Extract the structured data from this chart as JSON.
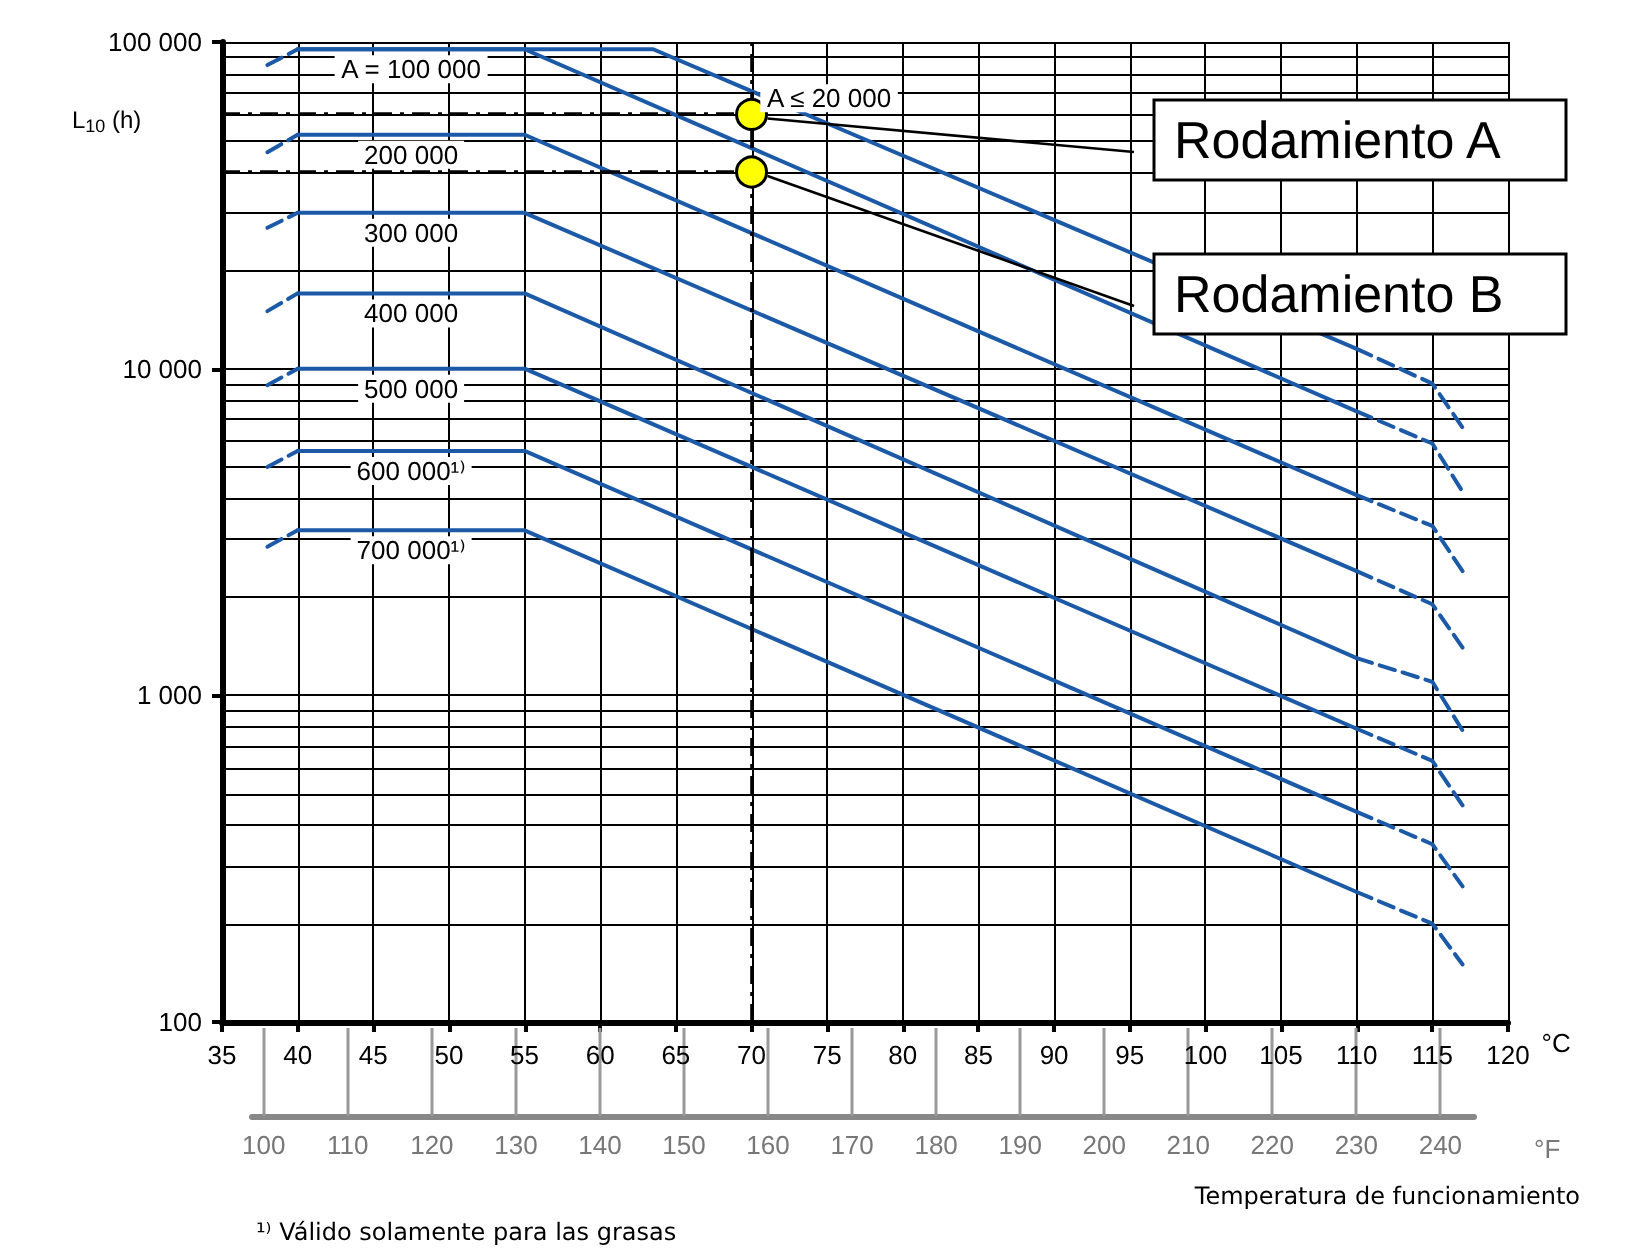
{
  "chart_data": {
    "type": "line",
    "xlabel": "°C",
    "x2label": "°F",
    "ylabel": "L$_{10}$ (h)",
    "xlim": [
      35,
      120
    ],
    "xticks": [
      35,
      40,
      45,
      50,
      55,
      60,
      65,
      70,
      75,
      80,
      85,
      90,
      95,
      100,
      105,
      110,
      115,
      120
    ],
    "x2lim": [
      98.6,
      244
    ],
    "x2ticks": [
      100,
      110,
      120,
      130,
      140,
      150,
      160,
      170,
      180,
      190,
      200,
      210,
      220,
      230,
      240
    ],
    "ylim": [
      100,
      100000
    ],
    "yticks": [
      {
        "value": 100,
        "label": "100"
      },
      {
        "value": 200,
        "label": null
      },
      {
        "value": 300,
        "label": null
      },
      {
        "value": 400,
        "label": null
      },
      {
        "value": 500,
        "label": null
      },
      {
        "value": 600,
        "label": null
      },
      {
        "value": 700,
        "label": null
      },
      {
        "value": 800,
        "label": null
      },
      {
        "value": 900,
        "label": null
      },
      {
        "value": 1000,
        "label": "1 000"
      },
      {
        "value": 2000,
        "label": null
      },
      {
        "value": 3000,
        "label": null
      },
      {
        "value": 4000,
        "label": null
      },
      {
        "value": 5000,
        "label": null
      },
      {
        "value": 6000,
        "label": null
      },
      {
        "value": 7000,
        "label": null
      },
      {
        "value": 8000,
        "label": null
      },
      {
        "value": 9000,
        "label": null
      },
      {
        "value": 10000,
        "label": "10 000"
      },
      {
        "value": 20000,
        "label": null
      },
      {
        "value": 30000,
        "label": null
      },
      {
        "value": 40000,
        "label": null
      },
      {
        "value": 50000,
        "label": null
      },
      {
        "value": 60000,
        "label": null
      },
      {
        "value": 70000,
        "label": null
      },
      {
        "value": 80000,
        "label": null
      },
      {
        "value": 90000,
        "label": null
      },
      {
        "value": 100000,
        "label": "100 000"
      }
    ],
    "log": "y",
    "grid": true,
    "marker": "none",
    "series": [
      {
        "name": "A = 100 000",
        "color": "#1c5aa8",
        "line_style": "solid",
        "x": [
          40,
          55,
          110
        ],
        "values": [
          95000,
          95000,
          7400
        ]
      },
      {
        "name": "A ≤ 20 000",
        "color": "#1c5aa8",
        "line_style": "solid",
        "x": [
          40,
          63.5,
          110
        ],
        "values": [
          95000,
          95000,
          11500
        ]
      },
      {
        "color": "#1c5aa8",
        "line_style": "dashed",
        "x": [
          110,
          115,
          117
        ],
        "values": [
          11500,
          9000,
          6600
        ]
      },
      {
        "color": "#1c5aa8",
        "line_style": "dashed",
        "x": [
          38,
          40
        ],
        "values": [
          85000,
          95000
        ]
      },
      {
        "color": "#1c5aa8",
        "line_style": "dashed",
        "x": [
          110,
          115,
          117
        ],
        "values": [
          7400,
          5900,
          4200
        ]
      },
      {
        "name": "200 000",
        "color": "#1c5aa8",
        "line_style": "solid",
        "x": [
          40,
          55,
          110
        ],
        "values": [
          52000,
          52000,
          4100
        ]
      },
      {
        "color": "#1c5aa8",
        "line_style": "dashed",
        "x": [
          38,
          40
        ],
        "values": [
          46000,
          52000
        ]
      },
      {
        "color": "#1c5aa8",
        "line_style": "dashed",
        "x": [
          110,
          115,
          117
        ],
        "values": [
          4100,
          3300,
          2400
        ]
      },
      {
        "name": "300 000",
        "color": "#1c5aa8",
        "line_style": "solid",
        "x": [
          40,
          55,
          110
        ],
        "values": [
          30000,
          30000,
          2400
        ]
      },
      {
        "color": "#1c5aa8",
        "line_style": "dashed",
        "x": [
          38,
          40
        ],
        "values": [
          27000,
          30000
        ]
      },
      {
        "color": "#1c5aa8",
        "line_style": "dashed",
        "x": [
          110,
          115,
          117
        ],
        "values": [
          2400,
          1900,
          1400
        ]
      },
      {
        "name": "400 000",
        "color": "#1c5aa8",
        "line_style": "solid",
        "x": [
          40,
          55,
          110
        ],
        "values": [
          17000,
          17000,
          1300
        ]
      },
      {
        "color": "#1c5aa8",
        "line_style": "dashed",
        "x": [
          38,
          40
        ],
        "values": [
          15000,
          17000
        ]
      },
      {
        "color": "#1c5aa8",
        "line_style": "dashed",
        "x": [
          110,
          115,
          117
        ],
        "values": [
          1300,
          1100,
          780
        ]
      },
      {
        "name": "500 000",
        "color": "#1c5aa8",
        "line_style": "solid",
        "x": [
          40,
          55,
          110
        ],
        "values": [
          10000,
          10000,
          790
        ]
      },
      {
        "color": "#1c5aa8",
        "line_style": "dashed",
        "x": [
          38,
          40
        ],
        "values": [
          8900,
          10000
        ]
      },
      {
        "color": "#1c5aa8",
        "line_style": "dashed",
        "x": [
          110,
          115,
          117
        ],
        "values": [
          790,
          630,
          460
        ]
      },
      {
        "name": "600 000¹⁾",
        "color": "#1c5aa8",
        "line_style": "solid",
        "x": [
          40,
          55,
          110
        ],
        "values": [
          5600,
          5600,
          440
        ]
      },
      {
        "color": "#1c5aa8",
        "line_style": "dashed",
        "x": [
          38,
          40
        ],
        "values": [
          5000,
          5600
        ]
      },
      {
        "color": "#1c5aa8",
        "line_style": "dashed",
        "x": [
          110,
          115,
          117
        ],
        "values": [
          440,
          350,
          260
        ]
      },
      {
        "name": "700 000¹⁾",
        "color": "#1c5aa8",
        "line_style": "solid",
        "x": [
          40,
          55,
          110
        ],
        "values": [
          3200,
          3200,
          250
        ]
      },
      {
        "color": "#1c5aa8",
        "line_style": "dashed",
        "x": [
          38,
          40
        ],
        "values": [
          2850,
          3200
        ]
      },
      {
        "color": "#1c5aa8",
        "line_style": "dashed",
        "x": [
          110,
          115,
          117
        ],
        "values": [
          250,
          200,
          150
        ]
      },
      {
        "type": "scatter",
        "color": "#ffff00",
        "marker": "circle",
        "x": [
          70,
          70
        ],
        "values": [
          60000,
          40000
        ]
      }
    ],
    "ref_lines": [
      {
        "axis": "x",
        "value": 70,
        "color": "#000000",
        "line_style": "dashed"
      },
      {
        "axis": "y",
        "value": 60000,
        "color": "#000000",
        "line_style": "dashed"
      },
      {
        "axis": "y",
        "value": 40000,
        "color": "#000000",
        "line_style": "dashed"
      }
    ],
    "annotations": [
      {
        "text": "Rodamiento A",
        "x": 70,
        "y": 60000
      },
      {
        "text": "Rodamiento B",
        "x": 70,
        "y": 40000
      },
      "Temperatura de funcionamiento",
      "¹⁾ Válido solamente para las grasas"
    ]
  }
}
